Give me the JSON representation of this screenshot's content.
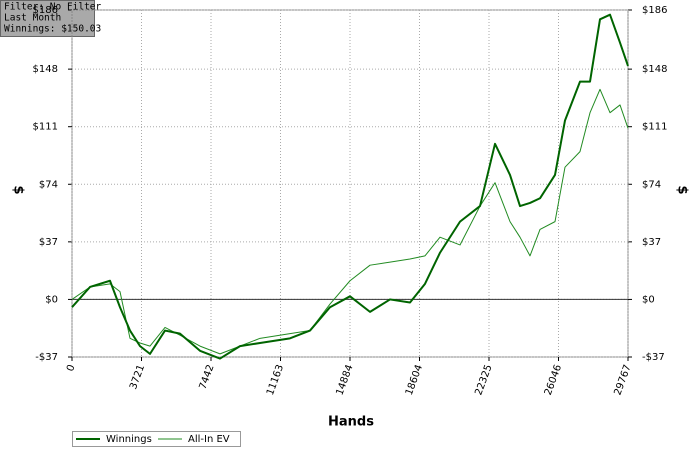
{
  "chart_data": {
    "type": "line",
    "annotations": [
      "Filter: No Filter",
      "Last Month",
      "Winnings: $150.03"
    ],
    "x_label": "Hands",
    "y_label": "$",
    "y2_label": "$",
    "x": [
      0,
      964,
      2034,
      2570,
      3105,
      3641,
      4176,
      4979,
      5782,
      6853,
      7924,
      8995,
      10065,
      11672,
      12742,
      13813,
      14884,
      15955,
      17026,
      18096,
      18899,
      19702,
      20773,
      21844,
      22647,
      23450,
      23985,
      24521,
      25056,
      25859,
      26394,
      27197,
      27733,
      28268,
      28804,
      29339,
      29767
    ],
    "series": [
      {
        "name": "Winnings",
        "color": "#006400",
        "values": [
          -5,
          8,
          12,
          -5,
          -20,
          -30,
          -35,
          -20,
          -22,
          -33,
          -38,
          -30,
          -28,
          -25,
          -20,
          -5,
          2,
          -8,
          0,
          -2,
          10,
          30,
          50,
          60,
          100,
          80,
          60,
          62,
          65,
          80,
          115,
          140,
          140,
          180,
          183,
          165,
          150.03
        ]
      },
      {
        "name": "All-In EV",
        "color": "#228b22",
        "values": [
          0,
          8,
          10,
          5,
          -25,
          -28,
          -30,
          -18,
          -23,
          -30,
          -35,
          -30,
          -25,
          -22,
          -20,
          -3,
          12,
          22,
          24,
          26,
          28,
          40,
          35,
          60,
          75,
          50,
          40,
          28,
          45,
          50,
          85,
          95,
          120,
          135,
          120,
          125,
          110
        ]
      }
    ],
    "xlim": [
      0,
      29767
    ],
    "xticks": [
      0,
      3721,
      7442,
      11163,
      14884,
      18604,
      22325,
      26046,
      29767
    ],
    "ylim": [
      -37,
      186
    ],
    "yticks": [
      {
        "value": -37,
        "label": "-$37"
      },
      {
        "value": 0,
        "label": "$0"
      },
      {
        "value": 37,
        "label": "$37"
      },
      {
        "value": 74,
        "label": "$74"
      },
      {
        "value": 111,
        "label": "$111"
      },
      {
        "value": 148,
        "label": "$148"
      },
      {
        "value": 186,
        "label": "$186"
      }
    ],
    "y2lim": [
      -37,
      186
    ],
    "y2ticks": [
      {
        "value": -37,
        "label": "-$37"
      },
      {
        "value": 0,
        "label": "$0"
      },
      {
        "value": 37,
        "label": "$37"
      },
      {
        "value": 74,
        "label": "$74"
      },
      {
        "value": 111,
        "label": "$111"
      },
      {
        "value": 148,
        "label": "$148"
      },
      {
        "value": 186,
        "label": "$186"
      }
    ],
    "grid": true,
    "legend": "bottom-left"
  }
}
